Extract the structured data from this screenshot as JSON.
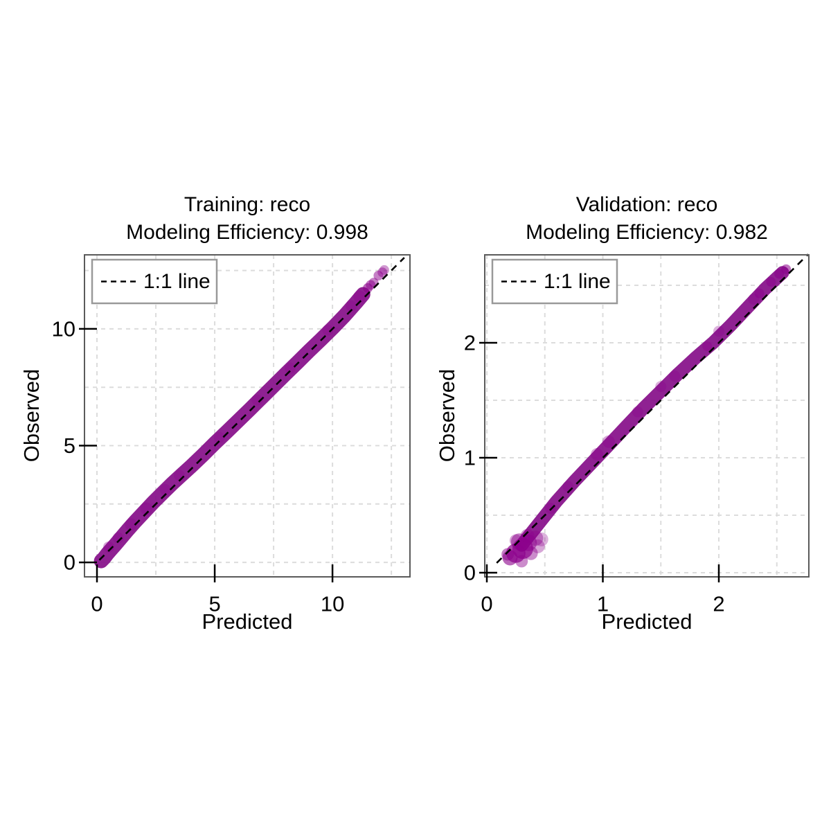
{
  "figure": {
    "background": "#FFFFFF",
    "style": {
      "point_color": "#8B008B",
      "band_color": "#87108A",
      "grid_color": "#DCDCDC",
      "identity_color": "#000000",
      "box_color": "#5A5A5A",
      "tick_color": "#000000",
      "legend_border": "#999999",
      "text_color": "#000000"
    }
  },
  "chart_data": [
    {
      "type": "scatter",
      "panel": "training",
      "dataset": "Training",
      "response": "reco",
      "modeling_efficiency": 0.998,
      "title_line1": "Training: reco",
      "title_line2": "Modeling Efficiency: 0.998",
      "xlabel": "Predicted",
      "ylabel": "Observed",
      "legend_label": "1:1 line",
      "legend_line_style": "dashed",
      "xlim": [
        -0.53,
        13.29
      ],
      "ylim": [
        -0.62,
        13.17
      ],
      "xticks": [
        0,
        5,
        10
      ],
      "yticks": [
        0,
        5,
        10
      ],
      "grid_values_x": [
        0,
        2.5,
        5,
        7.5,
        10,
        12.5
      ],
      "grid_values_y": [
        0,
        2.5,
        5,
        7.5,
        10,
        12.5
      ],
      "grid_on": true,
      "identity_line": {
        "from": 0.1,
        "to": 13.05
      },
      "band_points": [
        [
          0.18,
          0.06
        ],
        [
          0.3,
          0.18
        ],
        [
          0.45,
          0.38
        ],
        [
          0.6,
          0.55
        ],
        [
          0.8,
          0.78
        ],
        [
          1.0,
          1.02
        ],
        [
          1.3,
          1.38
        ],
        [
          1.6,
          1.72
        ],
        [
          2.0,
          2.15
        ],
        [
          2.4,
          2.58
        ],
        [
          2.8,
          2.98
        ],
        [
          3.2,
          3.38
        ],
        [
          3.6,
          3.75
        ],
        [
          4.0,
          4.12
        ],
        [
          4.5,
          4.6
        ],
        [
          5.0,
          5.1
        ],
        [
          5.5,
          5.58
        ],
        [
          6.0,
          6.07
        ],
        [
          6.5,
          6.56
        ],
        [
          7.0,
          7.06
        ],
        [
          7.5,
          7.56
        ],
        [
          8.0,
          8.06
        ],
        [
          8.5,
          8.55
        ],
        [
          9.0,
          9.05
        ],
        [
          9.5,
          9.53
        ],
        [
          10.0,
          10.03
        ],
        [
          10.5,
          10.55
        ],
        [
          11.0,
          11.12
        ],
        [
          11.3,
          11.48
        ]
      ],
      "fuzz_points": [
        [
          0.5,
          0.66,
          8,
          0.35
        ],
        [
          0.9,
          1.05,
          8,
          0.3
        ],
        [
          1.45,
          1.62,
          9,
          0.3
        ],
        [
          2.1,
          2.3,
          9,
          0.3
        ],
        [
          2.9,
          3.12,
          8,
          0.3
        ],
        [
          3.5,
          3.72,
          8,
          0.25
        ],
        [
          5.2,
          5.35,
          8,
          0.25
        ],
        [
          6.8,
          6.95,
          8,
          0.25
        ],
        [
          8.2,
          8.32,
          8,
          0.25
        ],
        [
          9.8,
          9.95,
          8,
          0.25
        ],
        [
          10.8,
          10.98,
          8,
          0.3
        ],
        [
          11.15,
          11.38,
          9,
          0.35
        ]
      ],
      "cluster_points": [],
      "outlier_points": [
        [
          11.5,
          11.75,
          7,
          0.6
        ],
        [
          11.62,
          11.88,
          7,
          0.55
        ],
        [
          11.75,
          11.98,
          7,
          0.5
        ],
        [
          11.95,
          12.28,
          7,
          0.5
        ],
        [
          12.12,
          12.42,
          7,
          0.45
        ],
        [
          12.2,
          12.52,
          7,
          0.4
        ]
      ]
    },
    {
      "type": "scatter",
      "panel": "validation",
      "dataset": "Validation",
      "response": "reco",
      "modeling_efficiency": 0.982,
      "title_line1": "Validation: reco",
      "title_line2": "Modeling Efficiency: 0.982",
      "xlabel": "Predicted",
      "ylabel": "Observed",
      "legend_label": "1:1 line",
      "legend_line_style": "dashed",
      "xlim": [
        -0.018,
        2.776
      ],
      "ylim": [
        -0.036,
        2.765
      ],
      "xticks": [
        0,
        1,
        2
      ],
      "yticks": [
        0,
        1,
        2
      ],
      "grid_values_x": [
        0,
        0.5,
        1,
        1.5,
        2,
        2.5
      ],
      "grid_values_y": [
        0,
        0.5,
        1,
        1.5,
        2,
        2.5
      ],
      "grid_on": true,
      "identity_line": {
        "from": 0.085,
        "to": 2.77
      },
      "band_points": [
        [
          0.3,
          0.24
        ],
        [
          0.45,
          0.43
        ],
        [
          0.6,
          0.62
        ],
        [
          0.75,
          0.79
        ],
        [
          0.9,
          0.95
        ],
        [
          1.05,
          1.11
        ],
        [
          1.2,
          1.27
        ],
        [
          1.35,
          1.43
        ],
        [
          1.5,
          1.58
        ],
        [
          1.65,
          1.73
        ],
        [
          1.8,
          1.87
        ],
        [
          1.95,
          2.0
        ],
        [
          2.1,
          2.15
        ],
        [
          2.25,
          2.31
        ],
        [
          2.4,
          2.47
        ],
        [
          2.55,
          2.61
        ]
      ],
      "fuzz_points": [
        [
          0.55,
          0.56,
          8,
          0.35
        ],
        [
          0.7,
          0.75,
          8,
          0.3
        ],
        [
          0.95,
          1.03,
          9,
          0.35
        ],
        [
          1.05,
          1.14,
          9,
          0.35
        ],
        [
          1.3,
          1.4,
          8,
          0.3
        ],
        [
          1.5,
          1.62,
          8,
          0.3
        ],
        [
          1.62,
          1.71,
          8,
          0.3
        ],
        [
          2.0,
          2.1,
          8,
          0.3
        ],
        [
          2.3,
          2.38,
          8,
          0.3
        ]
      ],
      "cluster_points": [
        [
          0.2,
          0.13,
          11,
          0.6
        ],
        [
          0.25,
          0.17,
          14,
          0.7
        ],
        [
          0.31,
          0.21,
          15,
          0.7
        ],
        [
          0.28,
          0.27,
          12,
          0.5
        ],
        [
          0.36,
          0.26,
          12,
          0.5
        ],
        [
          0.42,
          0.3,
          11,
          0.4
        ],
        [
          0.47,
          0.29,
          10,
          0.3
        ],
        [
          0.44,
          0.23,
          10,
          0.35
        ],
        [
          0.35,
          0.32,
          10,
          0.4
        ],
        [
          0.25,
          0.28,
          9,
          0.35
        ],
        [
          0.18,
          0.16,
          9,
          0.5
        ],
        [
          0.3,
          0.1,
          9,
          0.45
        ],
        [
          0.38,
          0.17,
          10,
          0.45
        ]
      ],
      "outlier_points": [
        [
          2.35,
          2.43,
          7,
          0.5
        ],
        [
          2.45,
          2.53,
          7,
          0.5
        ],
        [
          2.52,
          2.6,
          7,
          0.55
        ],
        [
          2.58,
          2.64,
          7,
          0.55
        ],
        [
          1.9,
          1.97,
          7,
          0.4
        ]
      ]
    }
  ]
}
